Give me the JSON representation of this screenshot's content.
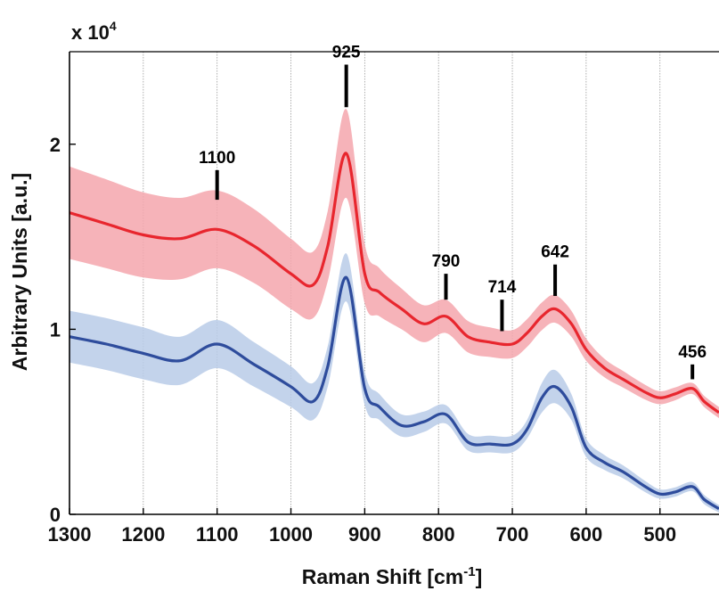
{
  "chart_data": {
    "type": "line",
    "xlabel": "Raman Shift [cm",
    "xlabel_sup": "-1",
    "xlabel_end": "]",
    "ylabel": "Arbitrary Units [a.u.]",
    "y_multiplier": "x 10",
    "y_multiplier_exp": "4",
    "xlim": [
      1300,
      420
    ],
    "x_reversed": true,
    "ylim": [
      0,
      25000
    ],
    "x_ticks": [
      1300,
      1200,
      1100,
      1000,
      900,
      800,
      700,
      600,
      500
    ],
    "y_ticks": [
      0,
      1,
      2
    ],
    "grid": "vertical",
    "legend": "none",
    "series": [
      {
        "color": "#e8262e",
        "band_color": "#f5a6ad",
        "x": [
          1300,
          1250,
          1200,
          1150,
          1100,
          1050,
          1000,
          970,
          950,
          925,
          900,
          880,
          850,
          820,
          790,
          760,
          730,
          700,
          680,
          660,
          642,
          620,
          600,
          575,
          550,
          520,
          500,
          480,
          456,
          440,
          420
        ],
        "y": [
          16300,
          15700,
          15100,
          14900,
          15400,
          14500,
          13000,
          12400,
          14500,
          19500,
          13000,
          12000,
          11100,
          10300,
          10700,
          9600,
          9300,
          9200,
          9800,
          10700,
          11100,
          10300,
          8900,
          7900,
          7300,
          6600,
          6300,
          6500,
          6800,
          6100,
          5500
        ],
        "band": [
          2500,
          2400,
          2300,
          2200,
          2100,
          2000,
          1900,
          1800,
          1900,
          2400,
          1600,
          1300,
          1100,
          1000,
          900,
          850,
          800,
          750,
          750,
          750,
          750,
          700,
          600,
          500,
          450,
          400,
          350,
          350,
          300,
          300,
          300
        ]
      },
      {
        "color": "#2e4c9c",
        "band_color": "#b9cbe8",
        "x": [
          1300,
          1250,
          1200,
          1150,
          1100,
          1050,
          1000,
          970,
          950,
          925,
          900,
          880,
          850,
          820,
          790,
          760,
          730,
          700,
          680,
          660,
          642,
          620,
          600,
          575,
          550,
          520,
          500,
          480,
          456,
          440,
          420
        ],
        "y": [
          9600,
          9200,
          8700,
          8300,
          9200,
          8100,
          6900,
          6100,
          8000,
          12800,
          6800,
          5800,
          4800,
          5000,
          5400,
          3900,
          3800,
          3800,
          4600,
          6300,
          6900,
          5800,
          3600,
          2800,
          2300,
          1500,
          1100,
          1200,
          1500,
          800,
          300
        ],
        "band": [
          1400,
          1400,
          1400,
          1300,
          1300,
          1200,
          1100,
          1000,
          1100,
          1300,
          900,
          700,
          600,
          550,
          500,
          450,
          450,
          450,
          500,
          800,
          900,
          700,
          500,
          400,
          350,
          300,
          250,
          250,
          250,
          250,
          200
        ]
      }
    ],
    "annotations": [
      {
        "label": "1100",
        "x": 1100,
        "y_top": 18600,
        "y_bottom": 17000
      },
      {
        "label": "925",
        "x": 925,
        "y_top": 24300,
        "y_bottom": 22000
      },
      {
        "label": "790",
        "x": 790,
        "y_top": 13000,
        "y_bottom": 11600
      },
      {
        "label": "714",
        "x": 714,
        "y_top": 11600,
        "y_bottom": 9900
      },
      {
        "label": "642",
        "x": 642,
        "y_top": 13500,
        "y_bottom": 11800
      },
      {
        "label": "456",
        "x": 456,
        "y_top": 8100,
        "y_bottom": 7300
      }
    ]
  }
}
